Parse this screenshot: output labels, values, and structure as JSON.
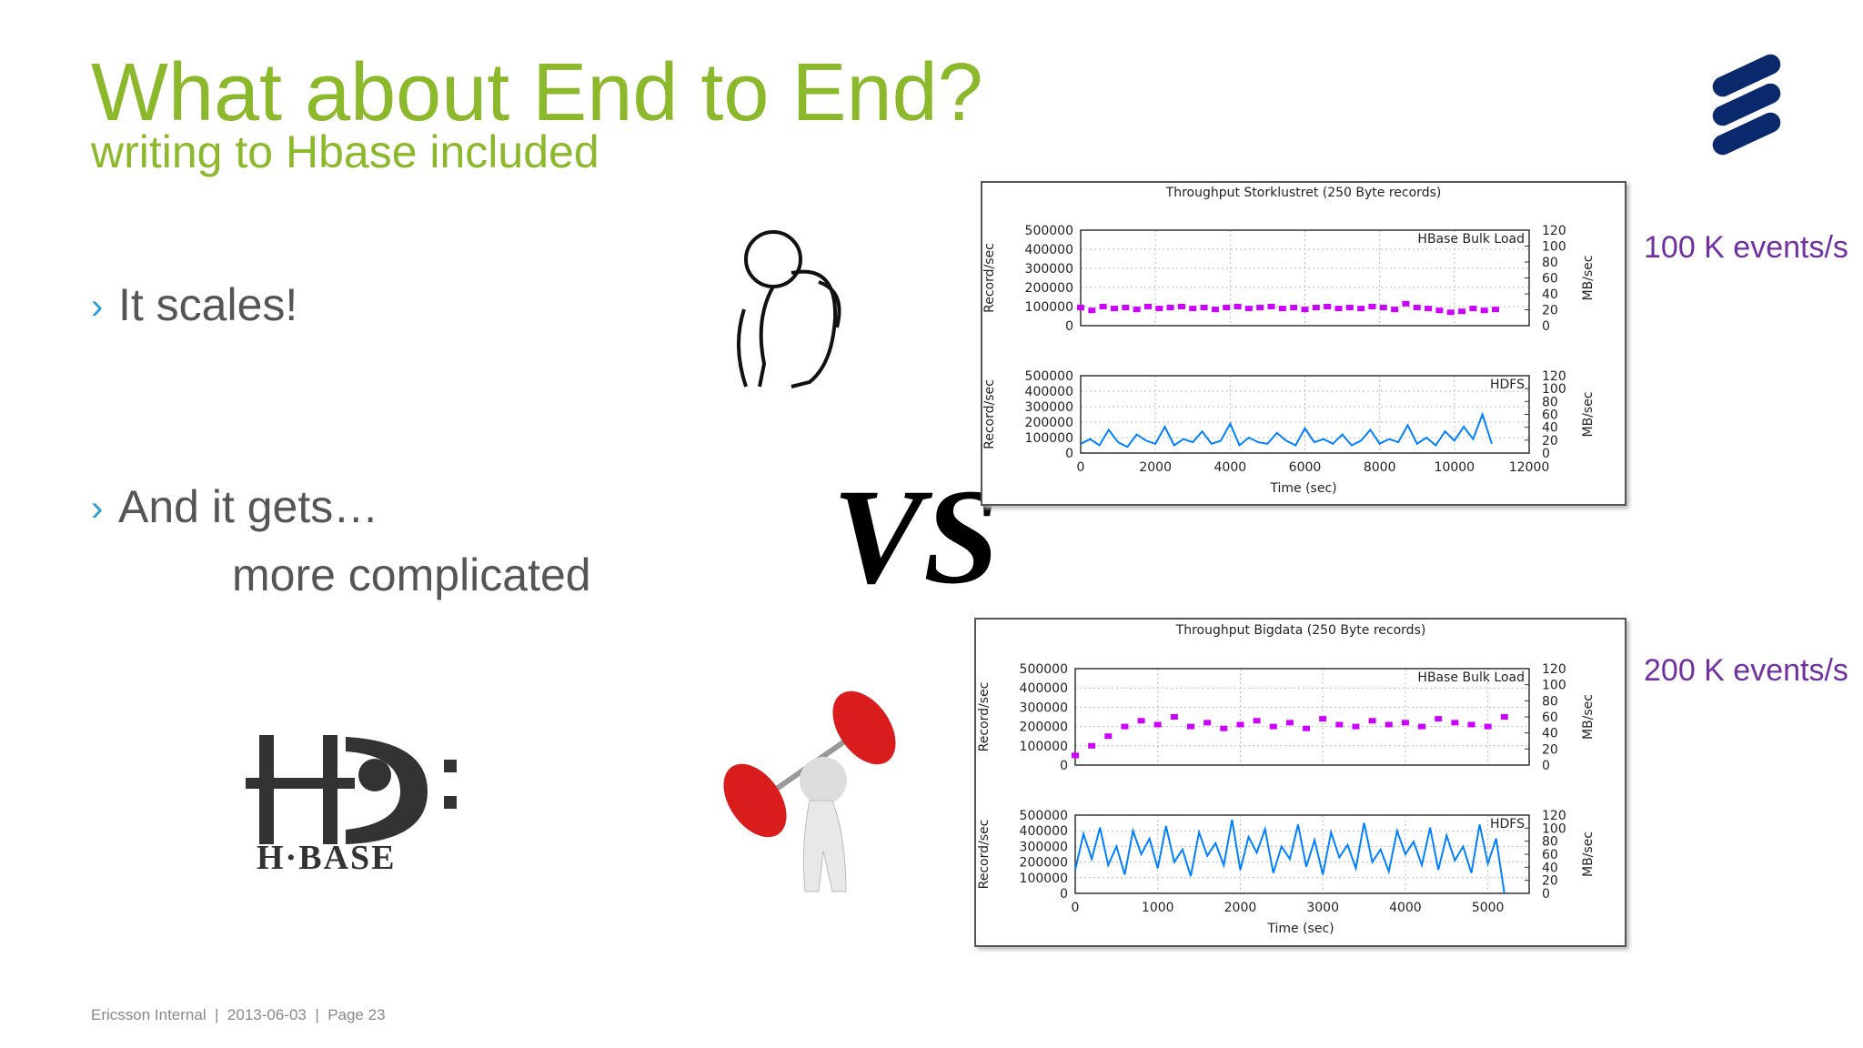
{
  "header": {
    "title": "What about End to End?",
    "subtitle": "writing to Hbase included"
  },
  "bullets": [
    "It scales!",
    "And it gets…"
  ],
  "bullet_continuation": "more complicated",
  "annotations": [
    "100 K events/s",
    "200 K events/s"
  ],
  "decor": {
    "vs": "VS",
    "hbase_logo": "H·BASE"
  },
  "footer": "Ericsson Internal  |  2013-06-03  |  Page 23",
  "chart_data": [
    {
      "type": "scatter",
      "title": "Throughput Storklustret (250 Byte records)",
      "ylabel": "Record/sec",
      "y2label": "MB/sec",
      "x": [
        0,
        300,
        600,
        900,
        1200,
        1500,
        1800,
        2100,
        2400,
        2700,
        3000,
        3300,
        3600,
        3900,
        4200,
        4500,
        4800,
        5100,
        5400,
        5700,
        6000,
        6300,
        6600,
        6900,
        7200,
        7500,
        7800,
        8100,
        8400,
        8700,
        9000,
        9300,
        9600,
        9900,
        10200,
        10500,
        10800,
        11100
      ],
      "series": [
        {
          "name": "HBase Bulk Load",
          "color": "#cc00ff",
          "values": [
            95000,
            80000,
            100000,
            90000,
            95000,
            85000,
            100000,
            90000,
            95000,
            100000,
            90000,
            95000,
            85000,
            95000,
            100000,
            90000,
            95000,
            100000,
            90000,
            95000,
            85000,
            95000,
            100000,
            90000,
            95000,
            90000,
            100000,
            95000,
            85000,
            115000,
            95000,
            90000,
            80000,
            70000,
            75000,
            90000,
            80000,
            85000
          ]
        }
      ],
      "xlim": [
        0,
        12000
      ],
      "xticks": [
        0,
        2000,
        4000,
        6000,
        8000,
        10000,
        12000
      ],
      "ylim": [
        0,
        500000
      ],
      "yticks": [
        0,
        100000,
        200000,
        300000,
        400000,
        500000
      ],
      "y2lim": [
        0,
        120
      ],
      "y2ticks": [
        0,
        20,
        40,
        60,
        80,
        100,
        120
      ],
      "grid": true,
      "legend": "top-right"
    },
    {
      "type": "line",
      "xlabel": "Time (sec)",
      "ylabel": "Record/sec",
      "y2label": "MB/sec",
      "x": [
        0,
        250,
        500,
        750,
        1000,
        1250,
        1500,
        1750,
        2000,
        2250,
        2500,
        2750,
        3000,
        3250,
        3500,
        3750,
        4000,
        4250,
        4500,
        4750,
        5000,
        5250,
        5500,
        5750,
        6000,
        6250,
        6500,
        6750,
        7000,
        7250,
        7500,
        7750,
        8000,
        8250,
        8500,
        8750,
        9000,
        9250,
        9500,
        9750,
        10000,
        10250,
        10500,
        10750,
        11000
      ],
      "series": [
        {
          "name": "HDFS",
          "color": "#0080ff",
          "values": [
            60000,
            90000,
            50000,
            150000,
            70000,
            40000,
            120000,
            80000,
            60000,
            170000,
            50000,
            90000,
            70000,
            140000,
            60000,
            80000,
            190000,
            50000,
            100000,
            70000,
            60000,
            130000,
            80000,
            50000,
            160000,
            70000,
            90000,
            60000,
            120000,
            50000,
            80000,
            150000,
            60000,
            90000,
            70000,
            180000,
            60000,
            100000,
            50000,
            140000,
            80000,
            170000,
            90000,
            250000,
            60000
          ]
        }
      ],
      "xlim": [
        0,
        12000
      ],
      "xticks": [
        0,
        2000,
        4000,
        6000,
        8000,
        10000,
        12000
      ],
      "ylim": [
        0,
        500000
      ],
      "yticks": [
        0,
        100000,
        200000,
        300000,
        400000,
        500000
      ],
      "y2lim": [
        0,
        120
      ],
      "y2ticks": [
        0,
        20,
        40,
        60,
        80,
        100,
        120
      ],
      "grid": true,
      "legend": "top-right"
    },
    {
      "type": "scatter",
      "title": "Throughput Bigdata (250 Byte records)",
      "ylabel": "Record/sec",
      "y2label": "MB/sec",
      "x": [
        0,
        200,
        400,
        600,
        800,
        1000,
        1200,
        1400,
        1600,
        1800,
        2000,
        2200,
        2400,
        2600,
        2800,
        3000,
        3200,
        3400,
        3600,
        3800,
        4000,
        4200,
        4400,
        4600,
        4800,
        5000,
        5200
      ],
      "series": [
        {
          "name": "HBase Bulk Load",
          "color": "#cc00ff",
          "values": [
            50000,
            100000,
            150000,
            200000,
            230000,
            210000,
            250000,
            200000,
            220000,
            190000,
            210000,
            230000,
            200000,
            220000,
            190000,
            240000,
            210000,
            200000,
            230000,
            210000,
            220000,
            200000,
            240000,
            220000,
            210000,
            200000,
            250000
          ]
        }
      ],
      "xlim": [
        0,
        5500
      ],
      "xticks": [
        0,
        1000,
        2000,
        3000,
        4000,
        5000
      ],
      "ylim": [
        0,
        500000
      ],
      "yticks": [
        0,
        100000,
        200000,
        300000,
        400000,
        500000
      ],
      "y2lim": [
        0,
        120
      ],
      "y2ticks": [
        0,
        20,
        40,
        60,
        80,
        100,
        120
      ],
      "grid": true,
      "legend": "top-right"
    },
    {
      "type": "line",
      "xlabel": "Time (sec)",
      "ylabel": "Record/sec",
      "y2label": "MB/sec",
      "x": [
        0,
        100,
        200,
        300,
        400,
        500,
        600,
        700,
        800,
        900,
        1000,
        1100,
        1200,
        1300,
        1400,
        1500,
        1600,
        1700,
        1800,
        1900,
        2000,
        2100,
        2200,
        2300,
        2400,
        2500,
        2600,
        2700,
        2800,
        2900,
        3000,
        3100,
        3200,
        3300,
        3400,
        3500,
        3600,
        3700,
        3800,
        3900,
        4000,
        4100,
        4200,
        4300,
        4400,
        4500,
        4600,
        4700,
        4800,
        4900,
        5000,
        5100,
        5200
      ],
      "series": [
        {
          "name": "HDFS",
          "color": "#0080ff",
          "values": [
            150000,
            380000,
            220000,
            420000,
            180000,
            300000,
            120000,
            400000,
            250000,
            350000,
            160000,
            430000,
            200000,
            280000,
            110000,
            390000,
            240000,
            320000,
            180000,
            470000,
            150000,
            360000,
            260000,
            410000,
            130000,
            300000,
            220000,
            440000,
            170000,
            340000,
            120000,
            390000,
            230000,
            310000,
            160000,
            450000,
            200000,
            280000,
            140000,
            400000,
            250000,
            330000,
            180000,
            420000,
            150000,
            370000,
            210000,
            300000,
            130000,
            440000,
            190000,
            350000,
            0
          ]
        }
      ],
      "xlim": [
        0,
        5500
      ],
      "xticks": [
        0,
        1000,
        2000,
        3000,
        4000,
        5000
      ],
      "ylim": [
        0,
        500000
      ],
      "yticks": [
        0,
        100000,
        200000,
        300000,
        400000,
        500000
      ],
      "y2lim": [
        0,
        120
      ],
      "y2ticks": [
        0,
        20,
        40,
        60,
        80,
        100,
        120
      ],
      "grid": true,
      "legend": "top-right"
    }
  ]
}
